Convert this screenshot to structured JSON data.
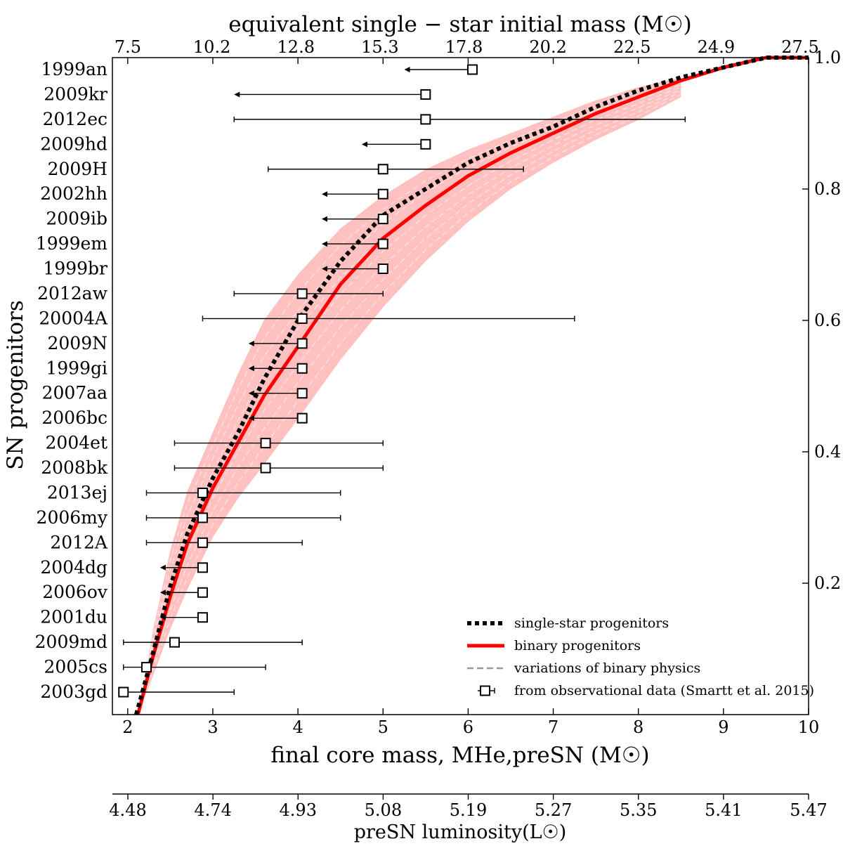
{
  "chart_data": {
    "type": "line",
    "titles": {
      "top_axis": "equivalent single − star initial mass (M☉)",
      "bottom_axis": "final core mass, MHe,preSN (M☉)",
      "luminosity_axis": "preSN luminosity(L☉)",
      "left_axis": "SN progenitors"
    },
    "top_axis_ticks": [
      "7.5",
      "10.2",
      "12.8",
      "15.3",
      "17.8",
      "20.2",
      "22.5",
      "24.9",
      "27.5"
    ],
    "bottom_axis_ticks": [
      2,
      3,
      4,
      5,
      6,
      7,
      8,
      9,
      10
    ],
    "luminosity_ticks": [
      "4.48",
      "4.74",
      "4.93",
      "5.08",
      "5.19",
      "5.27",
      "5.35",
      "5.41",
      "5.47"
    ],
    "right_axis_ticks": [
      "0.2",
      "0.4",
      "0.6",
      "0.8",
      "1.0"
    ],
    "xlim": [
      1.82,
      10.0
    ],
    "ylim": [
      0.0,
      1.0
    ],
    "progenitors": [
      {
        "name": "1999an",
        "mass": 6.05,
        "lower": 5.25,
        "upper": null
      },
      {
        "name": "2009kr",
        "mass": 5.5,
        "lower": 3.25,
        "upper": 5.5
      },
      {
        "name": "2012ec",
        "mass": 5.5,
        "lower": 3.25,
        "upper": 8.55
      },
      {
        "name": "2009hd",
        "mass": 5.5,
        "lower": 4.75,
        "upper": null
      },
      {
        "name": "2009H",
        "mass": 5.0,
        "lower": 3.65,
        "upper": 6.65
      },
      {
        "name": "2002hh",
        "mass": 5.0,
        "lower": 4.28,
        "upper": null
      },
      {
        "name": "2009ib",
        "mass": 5.0,
        "lower": 4.28,
        "upper": null
      },
      {
        "name": "1999em",
        "mass": 5.0,
        "lower": 4.28,
        "upper": null
      },
      {
        "name": "1999br",
        "mass": 5.0,
        "lower": 4.28,
        "upper": null
      },
      {
        "name": "2012aw",
        "mass": 4.05,
        "lower": 3.25,
        "upper": 5.0
      },
      {
        "name": "20004A",
        "mass": 4.05,
        "lower": 2.88,
        "upper": 7.25
      },
      {
        "name": "2009N",
        "mass": 4.05,
        "lower": 3.42,
        "upper": null
      },
      {
        "name": "1999gi",
        "mass": 4.05,
        "lower": 3.42,
        "upper": null
      },
      {
        "name": "2007aa",
        "mass": 4.05,
        "lower": 3.42,
        "upper": null
      },
      {
        "name": "2006bc",
        "mass": 4.05,
        "lower": 3.42,
        "upper": null
      },
      {
        "name": "2004et",
        "mass": 3.62,
        "lower": 2.55,
        "upper": 5.0
      },
      {
        "name": "2008bk",
        "mass": 3.62,
        "lower": 2.55,
        "upper": 5.0
      },
      {
        "name": "2013ej",
        "mass": 2.88,
        "lower": 2.22,
        "upper": 4.5
      },
      {
        "name": "2006my",
        "mass": 2.88,
        "lower": 2.22,
        "upper": 4.5
      },
      {
        "name": "2012A",
        "mass": 2.88,
        "lower": 2.22,
        "upper": 4.05
      },
      {
        "name": "2004dg",
        "mass": 2.88,
        "lower": 2.38,
        "upper": null
      },
      {
        "name": "2006ov",
        "mass": 2.88,
        "lower": 2.38,
        "upper": null
      },
      {
        "name": "2001du",
        "mass": 2.88,
        "lower": 2.38,
        "upper": null
      },
      {
        "name": "2009md",
        "mass": 2.55,
        "lower": 1.95,
        "upper": 4.05
      },
      {
        "name": "2005cs",
        "mass": 2.22,
        "lower": 1.95,
        "upper": 3.62
      },
      {
        "name": "2003gd",
        "mass": 1.95,
        "lower": 1.95,
        "upper": 3.25
      }
    ],
    "series": [
      {
        "name": "single-star progenitors",
        "style": "dotted",
        "color": "#000000",
        "x": [
          2.1,
          2.3,
          2.5,
          2.7,
          3.0,
          3.3,
          3.6,
          4.0,
          4.5,
          5.0,
          5.5,
          6.0,
          6.5,
          7.0,
          7.5,
          8.0,
          8.5,
          9.0,
          9.5,
          10.0
        ],
        "y": [
          0.0,
          0.095,
          0.195,
          0.275,
          0.36,
          0.43,
          0.51,
          0.6,
          0.69,
          0.76,
          0.8,
          0.84,
          0.87,
          0.895,
          0.925,
          0.95,
          0.97,
          0.985,
          1.0,
          1.0
        ]
      },
      {
        "name": "binary progenitors",
        "style": "solid",
        "color": "#ff0000",
        "x": [
          2.12,
          2.3,
          2.5,
          2.7,
          3.0,
          3.3,
          3.6,
          4.0,
          4.5,
          5.0,
          5.5,
          6.0,
          6.5,
          7.0,
          7.5,
          8.0,
          8.5,
          9.0,
          9.5,
          10.0
        ],
        "y": [
          0.0,
          0.09,
          0.18,
          0.26,
          0.345,
          0.415,
          0.485,
          0.56,
          0.655,
          0.725,
          0.775,
          0.82,
          0.855,
          0.885,
          0.915,
          0.94,
          0.965,
          0.985,
          1.0,
          1.0
        ]
      }
    ],
    "band": {
      "name": "variations of binary physics",
      "color": "#ffc0c0",
      "x": [
        2.12,
        2.3,
        2.5,
        2.7,
        3.0,
        3.3,
        3.6,
        4.0,
        4.5,
        5.0,
        5.5,
        6.0,
        6.5,
        7.0,
        7.5,
        8.0,
        8.5
      ],
      "upper": [
        0.0,
        0.13,
        0.25,
        0.34,
        0.43,
        0.52,
        0.6,
        0.67,
        0.74,
        0.79,
        0.83,
        0.86,
        0.885,
        0.91,
        0.935,
        0.955,
        0.97
      ],
      "lower": [
        0.0,
        0.06,
        0.13,
        0.19,
        0.27,
        0.33,
        0.38,
        0.45,
        0.54,
        0.62,
        0.69,
        0.75,
        0.8,
        0.84,
        0.875,
        0.905,
        0.94
      ]
    },
    "legend": {
      "position": "bottom-right",
      "entries": [
        "single-star progenitors",
        "binary progenitors",
        "variations of binary physics",
        "from observational data (Smartt et al. 2015)"
      ]
    }
  }
}
